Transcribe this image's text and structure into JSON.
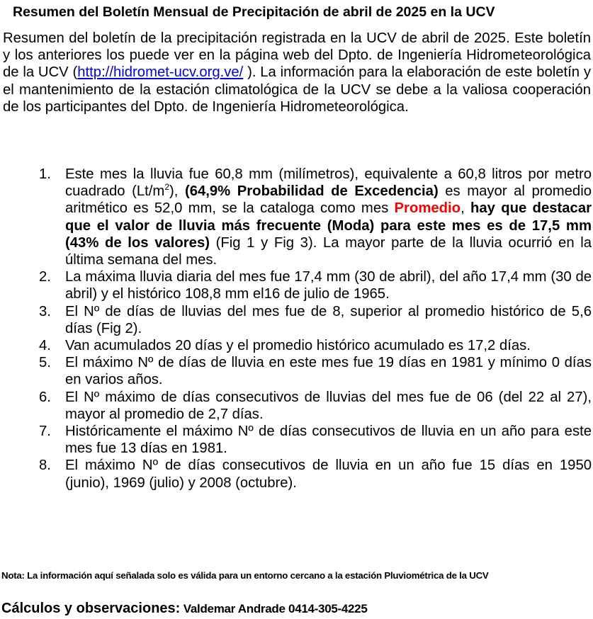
{
  "title": "Resumen del Boletín Mensual de Precipitación de abril de 2025 en la UCV",
  "intro": {
    "before_link": "Resumen del boletín de la precipitación registrada en la UCV de abril de 2025. Este boletín y los anteriores los puede ver en la página web del Dpto. de Ingeniería Hidrometeorológica de la UCV (",
    "link": "http://hidromet-ucv.org.ve/",
    "after_link": " ). La información para la elaboración de este boletín y el mantenimiento de la estación climatológica de la UCV se debe a la valiosa cooperación de los participantes del Dpto. de Ingeniería Hidrometeorológica."
  },
  "items": [
    {
      "num": "1.",
      "p0": "Este mes la lluvia fue 60,8 mm (milímetros), equivalente a 60,8 litros por metro cuadrado (Lt/m",
      "sup": "2",
      "p1": "), ",
      "b1": "(64,9% Probabilidad de Excedencia)",
      "p2": " es mayor al promedio aritmético es 52,0 mm, se la cataloga como mes ",
      "red": "Promedio",
      "p3": ", ",
      "b2": "hay que destacar que el valor de lluvia más frecuente (Moda) para este mes es de 17,5 mm (43% de los valores)",
      "p4": " (Fig 1 y Fig 3). La mayor parte de la lluvia ocurrió en la última semana del mes."
    },
    {
      "num": "2.",
      "text": "La máxima lluvia diaria del mes fue 17,4 mm (30 de abril), del año 17,4 mm (30 de abril) y el histórico 108,8 mm el16 de julio de 1965."
    },
    {
      "num": "3.",
      "text": "El Nº de días de lluvias del mes fue de 8, superior al promedio histórico de 5,6 días (Fig 2)."
    },
    {
      "num": "4.",
      "text": "Van acumulados 20 días y el promedio histórico acumulado es 17,2 días."
    },
    {
      "num": "5.",
      "text": "El máximo Nº de días de lluvia en este mes fue 19 días en 1981 y mínimo 0 días en varios años."
    },
    {
      "num": "6.",
      "text": "El Nº máximo de días consecutivos de lluvias del mes fue de 06 (del 22 al 27), mayor al promedio de 2,7 días."
    },
    {
      "num": "7.",
      "text": "Históricamente el máximo Nº de días consecutivos de lluvia en un año para este mes fue 13 días en 1981."
    },
    {
      "num": "8.",
      "text": "El máximo Nº de días consecutivos de lluvia en un año fue 15 días en 1950 (junio), 1969 (julio) y 2008 (octubre)."
    }
  ],
  "note": "Nota: La información aquí señalada solo es válida para un entorno cercano a la estación Pluviométrica de la UCV",
  "credits": {
    "label": "Cálculos y observaciones:",
    "name": "Valdemar Andrade 0414-305-4225"
  },
  "colors": {
    "highlight": "#ff0000",
    "link": "#0000ee"
  }
}
